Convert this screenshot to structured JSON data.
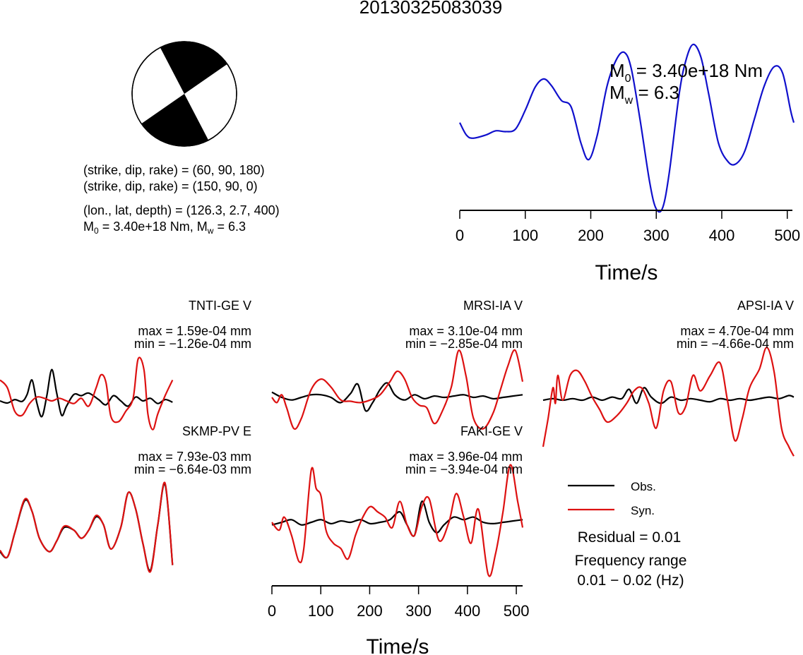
{
  "title": "20130325083039",
  "colors": {
    "obs": "#000000",
    "syn": "#dd1111",
    "stf": "#1010cc"
  },
  "beachball": {
    "line1": "(strike, dip, rake) = (60, 90, 180)",
    "line2": "(strike, dip, rake) = (150, 90, 0)",
    "line3": "(lon., lat, depth) = (126.3, 2.7, 400)",
    "m0_prefix": "M",
    "m0_sub": "0",
    "m0_text": " = 3.40e+18 Nm, M",
    "mw_sub": "w",
    "mw_text": " = 6.3"
  },
  "stf_panel": {
    "m0_label_main": "M",
    "m0_label_sub": "0",
    "m0_label_value": " = 3.40e+18 Nm",
    "mw_label_main": "M",
    "mw_label_sub": "w",
    "mw_label_value": " = 6.3",
    "xlabel": "Time/s",
    "xticks": [
      "0",
      "100",
      "200",
      "300",
      "400",
      "500"
    ]
  },
  "waveform_axis": {
    "xlabel": "Time/s",
    "xticks": [
      "0",
      "100",
      "200",
      "300",
      "400",
      "500"
    ]
  },
  "legend": {
    "obs": "Obs.",
    "syn": "Syn."
  },
  "summary": {
    "residual": "Residual = 0.01",
    "freq_title": "Frequency range",
    "freq_value": "0.01 − 0.02 (Hz)"
  },
  "chart_data": [
    {
      "type": "line",
      "name": "source-time-function",
      "xlabel": "Time/s",
      "xlim": [
        0,
        510
      ],
      "x": [
        0,
        10,
        20,
        40,
        55,
        70,
        85,
        100,
        115,
        128,
        140,
        155,
        170,
        185,
        197,
        210,
        225,
        240,
        252,
        262,
        275,
        290,
        300,
        310,
        320,
        335,
        345,
        356,
        368,
        380,
        395,
        410,
        422,
        435,
        450,
        465,
        480,
        493,
        505,
        510
      ],
      "y": [
        0.45,
        0.3,
        0.26,
        0.3,
        0.35,
        0.34,
        0.37,
        0.6,
        0.88,
        0.98,
        0.9,
        0.72,
        0.64,
        0.2,
        0.0,
        0.3,
        0.9,
        1.23,
        1.3,
        1.1,
        0.5,
        -0.28,
        -0.6,
        -0.58,
        -0.15,
        0.8,
        1.2,
        1.4,
        1.25,
        0.8,
        0.2,
        -0.03,
        -0.05,
        0.1,
        0.5,
        0.9,
        1.13,
        1.05,
        0.6,
        0.45
      ]
    },
    {
      "type": "line",
      "station": "TNTI-GE V",
      "max": "max = 1.59e-04 mm",
      "min": "min = −1.26e-04 mm",
      "xlim": [
        0,
        510
      ],
      "series": [
        {
          "name": "Obs.",
          "x": [
            0,
            15,
            30,
            45,
            55,
            65,
            75,
            85,
            95,
            105,
            115,
            125,
            135,
            150,
            165,
            180,
            200,
            215,
            230,
            245,
            260,
            275,
            290,
            305,
            320,
            335,
            350
          ],
          "y": [
            0,
            -0.08,
            0.05,
            -0.02,
            0.25,
            0.8,
            -0.1,
            -0.6,
            0.2,
            1.2,
            0.3,
            -0.55,
            -0.2,
            0.25,
            0.2,
            0.3,
            0.05,
            -0.15,
            0.2,
            0.0,
            -0.2,
            0.15,
            0.0,
            0.1,
            -0.1,
            0.05,
            -0.05
          ]
        },
        {
          "name": "Syn.",
          "x": [
            0,
            15,
            30,
            45,
            60,
            75,
            90,
            105,
            120,
            135,
            150,
            165,
            180,
            195,
            205,
            215,
            225,
            240,
            255,
            270,
            280,
            292,
            300,
            310,
            320,
            335,
            350
          ],
          "y": [
            0.8,
            0.5,
            -0.4,
            -0.55,
            -0.1,
            0.15,
            0.1,
            0.0,
            0.1,
            0.0,
            -0.1,
            0.1,
            -0.2,
            0.5,
            1.0,
            0.7,
            -0.6,
            -0.8,
            -0.4,
            0.1,
            1.6,
            1.2,
            -0.5,
            -1.1,
            -0.5,
            0.2,
            0.8
          ]
        }
      ]
    },
    {
      "type": "line",
      "station": "MRSI-IA V",
      "max": "max = 3.10e-04 mm",
      "min": "min = −2.85e-04 mm",
      "xlim": [
        0,
        510
      ],
      "series": [
        {
          "name": "Obs.",
          "x": [
            0,
            20,
            40,
            60,
            80,
            100,
            120,
            140,
            160,
            175,
            190,
            205,
            220,
            235,
            250,
            270,
            290,
            310,
            330,
            350,
            370,
            390,
            410,
            430,
            450,
            470,
            490,
            510
          ],
          "y": [
            0.2,
            0.0,
            -0.1,
            0.0,
            0.1,
            0.1,
            0.0,
            -0.2,
            0.15,
            0.5,
            -0.5,
            -0.2,
            0.3,
            0.55,
            0.1,
            -0.1,
            0.1,
            -0.05,
            0.05,
            0.0,
            0.05,
            0.1,
            0.0,
            0.05,
            -0.05,
            0.0,
            0.05,
            0.1
          ]
        },
        {
          "name": "Syn.",
          "x": [
            0,
            10,
            20,
            30,
            45,
            60,
            80,
            100,
            120,
            140,
            160,
            180,
            200,
            220,
            240,
            255,
            270,
            285,
            300,
            315,
            330,
            345,
            365,
            380,
            395,
            410,
            430,
            450,
            465,
            480,
            495,
            510
          ],
          "y": [
            0.0,
            -0.2,
            0.1,
            -0.4,
            -1.2,
            -0.8,
            0.3,
            0.7,
            0.4,
            -0.1,
            -0.15,
            -0.2,
            -0.1,
            0.1,
            0.6,
            1.0,
            0.7,
            0.0,
            -0.3,
            -0.4,
            -1.0,
            -0.6,
            0.4,
            1.8,
            0.8,
            -0.8,
            -1.2,
            -0.6,
            0.3,
            1.2,
            1.8,
            0.6
          ]
        }
      ]
    },
    {
      "type": "line",
      "station": "APSI-IA V",
      "max": "max = 4.70e-04 mm",
      "min": "min = −4.66e-04 mm",
      "xlim": [
        0,
        510
      ],
      "series": [
        {
          "name": "Obs.",
          "x": [
            0,
            20,
            40,
            60,
            80,
            100,
            120,
            140,
            160,
            175,
            190,
            205,
            220,
            240,
            260,
            280,
            300,
            320,
            340,
            360,
            380,
            400,
            420,
            440,
            460,
            480,
            500,
            510
          ],
          "y": [
            0.0,
            0.05,
            0.0,
            0.05,
            0.0,
            0.1,
            0.0,
            0.1,
            0.05,
            0.35,
            -0.1,
            0.4,
            0.1,
            -0.1,
            0.1,
            0.0,
            0.05,
            0.0,
            -0.05,
            0.05,
            0.0,
            0.05,
            0.0,
            0.05,
            0.1,
            0.05,
            0.15,
            0.1
          ]
        },
        {
          "name": "Syn.",
          "x": [
            0,
            10,
            20,
            25,
            30,
            40,
            55,
            70,
            85,
            100,
            115,
            130,
            150,
            170,
            185,
            200,
            215,
            230,
            245,
            260,
            275,
            290,
            305,
            320,
            340,
            360,
            375,
            390,
            405,
            420,
            440,
            455,
            470,
            485,
            500,
            510
          ],
          "y": [
            -1.5,
            -0.6,
            0.4,
            -0.1,
            0.8,
            0.0,
            0.8,
            0.95,
            0.6,
            0.1,
            -0.3,
            -0.7,
            -0.5,
            -0.1,
            0.3,
            0.4,
            -0.1,
            -0.9,
            0.3,
            0.6,
            -0.4,
            -0.2,
            0.8,
            0.3,
            0.8,
            1.2,
            0.0,
            -1.3,
            -0.6,
            0.4,
            1.0,
            1.7,
            0.9,
            -0.9,
            -1.5,
            -1.8
          ]
        }
      ]
    },
    {
      "type": "line",
      "station": "SKMP-PV E",
      "max": "max = 7.93e-03 mm",
      "min": "min = −6.64e-03 mm",
      "xlim": [
        0,
        510
      ],
      "series": [
        {
          "name": "Obs.",
          "x": [
            0,
            15,
            30,
            50,
            65,
            80,
            100,
            115,
            130,
            150,
            165,
            180,
            195,
            210,
            225,
            245,
            260,
            275,
            290,
            305,
            320,
            335,
            350
          ],
          "y": [
            -0.7,
            -0.9,
            0.0,
            1.2,
            0.8,
            -0.2,
            -0.7,
            -0.3,
            0.2,
            0.1,
            -0.2,
            0.1,
            0.6,
            0.3,
            -0.6,
            0.2,
            1.5,
            0.9,
            -0.4,
            -1.4,
            0.3,
            1.8,
            -1.2
          ]
        },
        {
          "name": "Syn.",
          "x": [
            0,
            15,
            30,
            50,
            65,
            80,
            100,
            115,
            130,
            150,
            165,
            180,
            195,
            210,
            225,
            245,
            260,
            275,
            290,
            305,
            320,
            335,
            350
          ],
          "y": [
            -0.65,
            -0.9,
            0.0,
            1.25,
            0.8,
            -0.2,
            -0.7,
            -0.3,
            0.25,
            0.1,
            -0.2,
            0.1,
            0.65,
            0.3,
            -0.6,
            0.2,
            1.5,
            0.9,
            -0.4,
            -1.45,
            0.3,
            1.85,
            -1.2
          ]
        }
      ]
    },
    {
      "type": "line",
      "station": "FAKI-GE V",
      "max": "max = 3.96e-04 mm",
      "min": "min = −3.94e-04 mm",
      "xlim": [
        0,
        510
      ],
      "series": [
        {
          "name": "Obs.",
          "x": [
            0,
            20,
            40,
            60,
            80,
            100,
            120,
            140,
            160,
            180,
            200,
            220,
            240,
            260,
            275,
            290,
            305,
            320,
            335,
            350,
            370,
            390,
            410,
            430,
            450,
            470,
            490,
            510
          ],
          "y": [
            -0.1,
            0.0,
            0.1,
            -0.1,
            0.0,
            0.1,
            -0.05,
            0.05,
            0.0,
            0.1,
            -0.05,
            0.0,
            0.1,
            0.4,
            -0.1,
            -0.5,
            0.8,
            0.0,
            -0.4,
            -0.1,
            0.2,
            0.1,
            0.2,
            0.0,
            -0.05,
            0.0,
            0.05,
            0.1
          ]
        },
        {
          "name": "Syn.",
          "x": [
            0,
            15,
            25,
            40,
            55,
            65,
            80,
            90,
            100,
            110,
            125,
            140,
            155,
            170,
            185,
            200,
            215,
            230,
            245,
            260,
            275,
            290,
            305,
            320,
            340,
            360,
            375,
            390,
            405,
            420,
            440,
            455,
            470,
            485,
            500,
            510
          ],
          "y": [
            0.0,
            -0.3,
            0.2,
            -0.5,
            -1.5,
            -1.0,
            2.0,
            1.3,
            1.0,
            -0.3,
            -0.8,
            -1.0,
            -1.4,
            -0.5,
            0.2,
            0.6,
            0.4,
            0.2,
            -0.2,
            0.8,
            -0.1,
            -0.5,
            0.6,
            0.9,
            -0.7,
            0.0,
            1.1,
            0.2,
            -0.8,
            0.5,
            -2.0,
            -1.2,
            0.4,
            2.2,
            0.8,
            -0.2
          ]
        }
      ]
    }
  ]
}
